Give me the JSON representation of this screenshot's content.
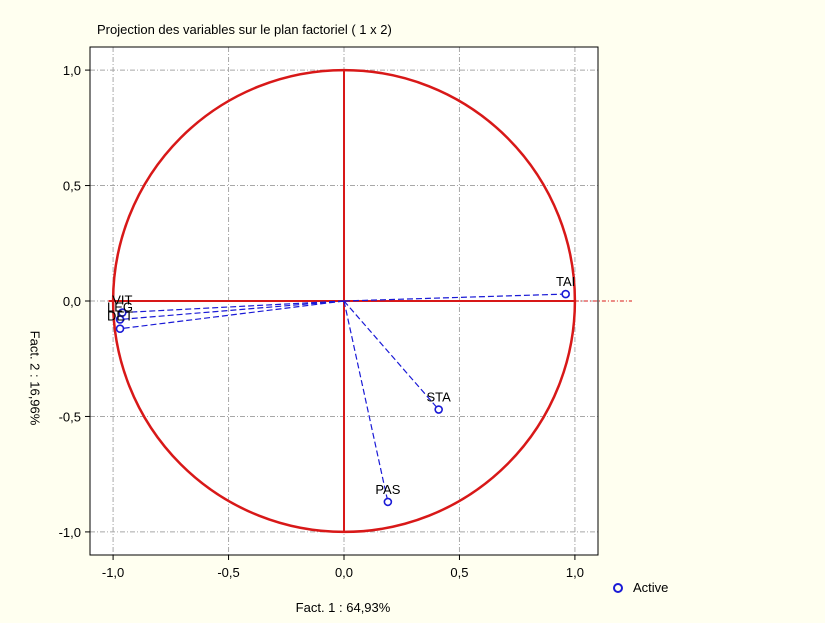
{
  "chart_data": {
    "type": "scatter",
    "title": "Projection des variables sur le plan factoriel ( 1 x 2)",
    "xlabel": "Fact. 1 : 64,93%",
    "ylabel": "Fact. 2 : 16,96%",
    "xlim": [
      -1.1,
      1.1
    ],
    "ylim": [
      -1.1,
      1.1
    ],
    "x_ticks": [
      -1.0,
      -0.5,
      0.0,
      0.5,
      1.0
    ],
    "x_tick_labels": [
      "-1,0",
      "-0,5",
      "0,0",
      "0,5",
      "1,0"
    ],
    "y_ticks": [
      1.0,
      0.5,
      0.0,
      -0.5,
      -1.0
    ],
    "y_tick_labels": [
      "1,0",
      "0,5",
      "0,0",
      "-0,5",
      "-1,0"
    ],
    "grid": true,
    "unit_circle": true,
    "series": [
      {
        "name": "Active",
        "points": [
          {
            "label": "TAI",
            "x": 0.96,
            "y": 0.03
          },
          {
            "label": "STA",
            "x": 0.41,
            "y": -0.47
          },
          {
            "label": "PAS",
            "x": 0.19,
            "y": -0.87
          },
          {
            "label": "VIT",
            "x": -0.96,
            "y": -0.05
          },
          {
            "label": "LEG",
            "x": -0.97,
            "y": -0.08
          },
          {
            "label": "DET",
            "x": -0.97,
            "y": -0.12
          }
        ]
      }
    ],
    "legend": {
      "position": "bottom-right",
      "entries": [
        "Active"
      ]
    },
    "colors": {
      "axes": "#d81818",
      "vectors": "#1a1ad6",
      "grid": "#a8a8a8"
    }
  }
}
